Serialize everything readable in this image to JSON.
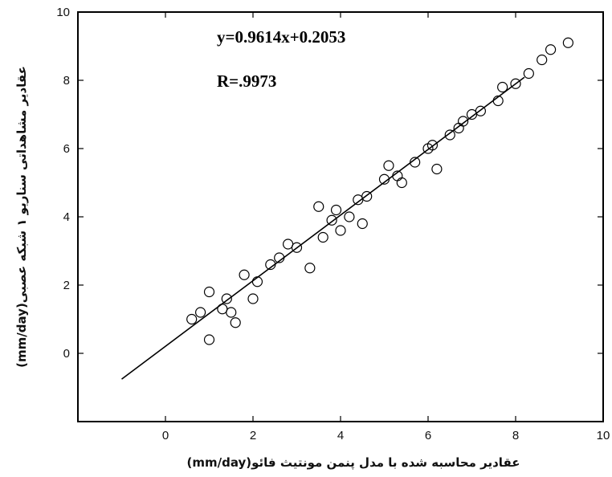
{
  "chart_data": {
    "type": "scatter",
    "title": "",
    "xlabel": "عقادیر محاسبه شده با مدل پنمن مونتیث فائو(mm/day)",
    "ylabel": "عقادیر مشاهداتی سناریو ۱ شبکه عصبی(mm/day)",
    "xlim": [
      -2,
      10
    ],
    "ylim": [
      -2,
      10
    ],
    "xticks": [
      "0",
      "2",
      "4",
      "6",
      "8",
      "10"
    ],
    "yticks": [
      "0",
      "2",
      "4",
      "6",
      "8",
      "10"
    ],
    "grid": false,
    "marker": "open-circle",
    "fit_line": {
      "slope": 0.9614,
      "intercept": 0.2053,
      "x_range": [
        -1,
        8.2
      ]
    },
    "annotations": [
      "y=0.9614x+0.2053",
      "R=.9973"
    ],
    "series": [
      {
        "x": [
          0.6,
          1.0,
          1.4,
          1.6,
          2.1,
          2.4,
          3.0,
          3.3,
          3.6,
          3.8,
          4.2,
          4.6,
          5.0,
          5.3,
          5.7,
          6.1,
          6.5,
          6.8,
          7.2,
          7.6,
          8.0,
          8.3,
          8.6,
          8.8,
          9.2,
          1.0,
          1.5,
          3.5,
          4.5,
          6.2,
          0.8,
          1.8,
          2.8,
          4.0,
          5.1,
          6.0,
          7.0,
          7.7,
          1.3,
          2.6,
          3.9,
          5.4,
          6.7,
          2.0,
          4.4
        ],
        "y": [
          1.0,
          0.4,
          1.6,
          0.9,
          2.1,
          2.6,
          3.1,
          2.5,
          3.4,
          3.9,
          4.0,
          4.6,
          5.1,
          5.2,
          5.6,
          6.1,
          6.4,
          6.8,
          7.1,
          7.4,
          7.9,
          8.2,
          8.6,
          8.9,
          9.1,
          1.8,
          1.2,
          4.3,
          3.8,
          5.4,
          1.2,
          2.3,
          3.2,
          3.6,
          5.5,
          6.0,
          7.0,
          7.8,
          1.3,
          2.8,
          4.2,
          5.0,
          6.6,
          1.6,
          4.5
        ]
      }
    ]
  }
}
